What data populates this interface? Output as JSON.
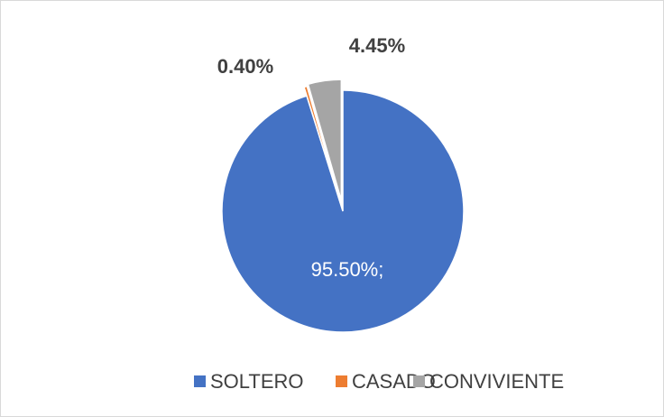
{
  "chart_data": {
    "type": "pie",
    "categories": [
      "SOLTERO",
      "CASADO",
      "CONVIVIENTE"
    ],
    "values": [
      95.5,
      0.4,
      4.45
    ],
    "value_labels": [
      "95.50%;",
      "0.40%",
      "4.45%"
    ],
    "colors": [
      "#4472c4",
      "#ed7d31",
      "#a5a5a5"
    ],
    "legend": "bottom"
  }
}
